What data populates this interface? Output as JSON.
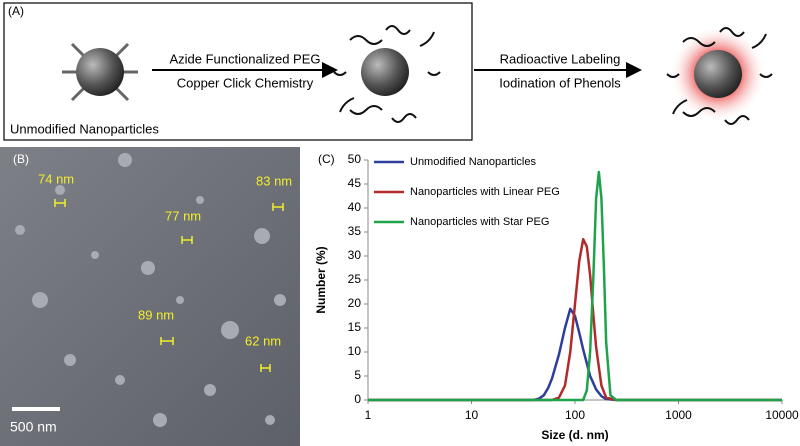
{
  "panel_a": {
    "label": "(A)",
    "step1_top": "Azide Functionalized PEG",
    "step1_bottom": "Copper Click Chemistry",
    "step2_top": "Radioactive Labeling",
    "step2_bottom": "Iodination of Phenols",
    "caption": "Unmodified Nanoparticles"
  },
  "panel_b": {
    "label": "(B)",
    "sizes": [
      "74 nm",
      "83 nm",
      "77 nm",
      "89 nm",
      "62 nm"
    ],
    "scale_bar": "500 nm"
  },
  "chart_data": {
    "type": "line",
    "label": "(C)",
    "x_label": "Size (d. nm)",
    "y_label": "Number (%)",
    "log_x": true,
    "xlim": [
      1,
      10000
    ],
    "xticks": [
      1,
      10,
      100,
      1000,
      10000
    ],
    "ylim": [
      0,
      50
    ],
    "yticks": [
      0,
      5,
      10,
      15,
      20,
      25,
      30,
      35,
      40,
      45,
      50
    ],
    "legend": "upper left",
    "series": [
      {
        "name": "Unmodified Nanoparticles",
        "color": "#2e3e9c",
        "x": [
          1,
          30,
          40,
          45,
          50,
          55,
          60,
          70,
          80,
          90,
          100,
          110,
          120,
          140,
          160,
          180,
          200,
          250,
          10000
        ],
        "values": [
          0,
          0,
          0,
          0.3,
          1,
          2.5,
          4.5,
          9.5,
          15,
          19,
          17.5,
          14,
          10.5,
          5,
          2.2,
          0.8,
          0.2,
          0,
          0
        ]
      },
      {
        "name": "Nanoparticles with Linear PEG",
        "color": "#b22a2a",
        "x": [
          1,
          50,
          60,
          70,
          80,
          90,
          100,
          110,
          120,
          130,
          140,
          150,
          160,
          180,
          200,
          250,
          10000
        ],
        "values": [
          0,
          0,
          0,
          0.5,
          3,
          10,
          20,
          29,
          33.5,
          32,
          26,
          18,
          11,
          3,
          0.5,
          0,
          0
        ]
      },
      {
        "name": "Nanoparticles with Star PEG",
        "color": "#1fa34a",
        "x": [
          1,
          100,
          120,
          130,
          140,
          150,
          160,
          170,
          180,
          190,
          200,
          220,
          250,
          10000
        ],
        "values": [
          0,
          0,
          0,
          2,
          10,
          25,
          42,
          47.5,
          42,
          28,
          12,
          1,
          0,
          0
        ]
      }
    ]
  }
}
